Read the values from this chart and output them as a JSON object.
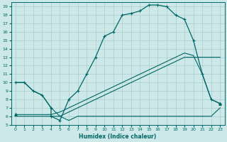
{
  "xlabel": "Humidex (Indice chaleur)",
  "bg_color": "#cce8e8",
  "grid_color": "#aacccc",
  "line_color": "#006666",
  "xlim": [
    -0.5,
    23.5
  ],
  "ylim": [
    5,
    19.5
  ],
  "xticks": [
    0,
    1,
    2,
    3,
    4,
    5,
    6,
    7,
    8,
    9,
    10,
    11,
    12,
    13,
    14,
    15,
    16,
    17,
    18,
    19,
    20,
    21,
    22,
    23
  ],
  "yticks": [
    5,
    6,
    7,
    8,
    9,
    10,
    11,
    12,
    13,
    14,
    15,
    16,
    17,
    18,
    19
  ],
  "line_humidex_x": [
    0,
    1,
    2,
    3,
    4,
    4,
    5,
    6,
    7,
    8,
    9,
    10,
    11,
    12,
    13,
    14,
    15,
    16,
    17,
    18,
    19,
    20,
    21,
    22,
    23
  ],
  "line_humidex_y": [
    10,
    10,
    9,
    8.5,
    7,
    6,
    5.5,
    8,
    9,
    11,
    13,
    15.5,
    16,
    18,
    18.2,
    18.5,
    19.2,
    19.2,
    19,
    18,
    17.5,
    15,
    11,
    8,
    7.5
  ],
  "line_diag1_x": [
    0,
    1,
    2,
    3,
    4,
    5,
    6,
    7,
    8,
    9,
    10,
    11,
    12,
    13,
    14,
    15,
    16,
    17,
    18,
    19,
    20,
    21,
    22,
    23
  ],
  "line_diag1_y": [
    6,
    6,
    6,
    6,
    6,
    6,
    6.5,
    7,
    7.5,
    8,
    8.5,
    9,
    9.5,
    10,
    10.5,
    11,
    11.5,
    12,
    12.5,
    13,
    13,
    13,
    13,
    13
  ],
  "line_diag2_x": [
    0,
    1,
    2,
    3,
    4,
    5,
    6,
    7,
    8,
    9,
    10,
    11,
    12,
    13,
    14,
    15,
    16,
    17,
    18,
    19,
    20,
    21,
    22,
    23
  ],
  "line_diag2_y": [
    6.2,
    6.2,
    6.2,
    6.2,
    6.2,
    6.5,
    7,
    7.5,
    8,
    8.5,
    9,
    9.5,
    10,
    10.5,
    11,
    11.5,
    12,
    12.5,
    13,
    13.5,
    13.2,
    11,
    8,
    7.5
  ],
  "line_flat_x": [
    0,
    1,
    2,
    3,
    4,
    5,
    6,
    7,
    8,
    9,
    10,
    11,
    12,
    13,
    14,
    15,
    16,
    17,
    18,
    19,
    20,
    21,
    22,
    23
  ],
  "line_flat_y": [
    10,
    10,
    9,
    8.5,
    7,
    6,
    5.5,
    6,
    6,
    6,
    6,
    6,
    6,
    6,
    6,
    6,
    6,
    6,
    6,
    6,
    6,
    6,
    6,
    7
  ]
}
